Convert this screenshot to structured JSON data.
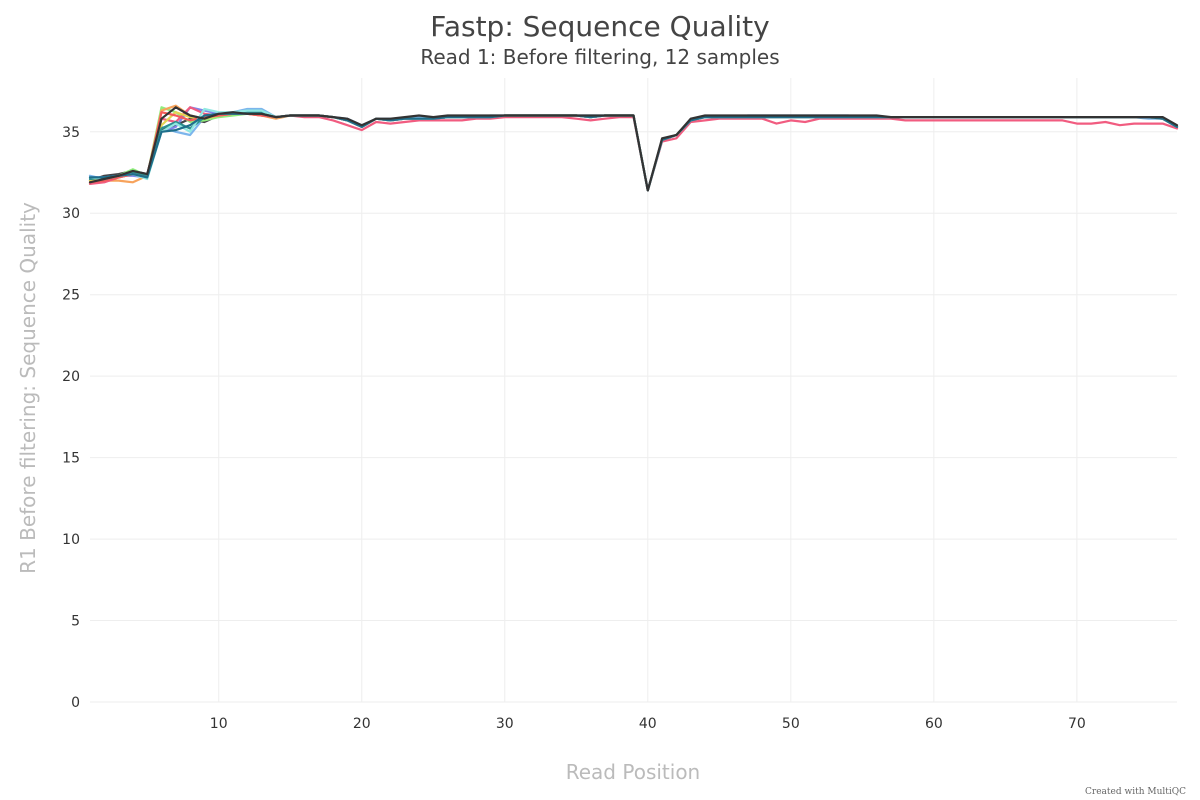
{
  "chart_data": {
    "type": "line",
    "title": "Fastp: Sequence Quality",
    "subtitle": "Read 1: Before filtering, 12 samples",
    "xlabel": "Read Position",
    "ylabel": "R1 Before filtering: Sequence Quality",
    "xlim": [
      1,
      77
    ],
    "ylim": [
      0,
      38.3
    ],
    "xticks": [
      10,
      20,
      30,
      40,
      50,
      60,
      70
    ],
    "yticks": [
      0,
      5,
      10,
      15,
      20,
      25,
      30,
      35
    ],
    "grid": true,
    "credit": "Created with MultiQC",
    "x": [
      1,
      2,
      3,
      4,
      5,
      6,
      7,
      8,
      9,
      10,
      11,
      12,
      13,
      14,
      15,
      16,
      17,
      18,
      19,
      20,
      21,
      22,
      23,
      24,
      25,
      26,
      27,
      28,
      29,
      30,
      31,
      32,
      33,
      34,
      35,
      36,
      37,
      38,
      39,
      40,
      41,
      42,
      43,
      44,
      45,
      46,
      47,
      48,
      49,
      50,
      51,
      52,
      53,
      54,
      55,
      56,
      57,
      58,
      59,
      60,
      61,
      62,
      63,
      64,
      65,
      66,
      67,
      68,
      69,
      70,
      71,
      72,
      73,
      74,
      75,
      76,
      77
    ],
    "series": [
      {
        "color": "#7cb5ec",
        "values": [
          32.3,
          32.1,
          32.2,
          32.4,
          32.2,
          35.3,
          35.0,
          34.8,
          35.9,
          36.1,
          36.2,
          36.4,
          36.4,
          35.9,
          36.0,
          36.0,
          36.0,
          35.9,
          35.8,
          35.4,
          35.8,
          35.8,
          35.8,
          35.9,
          35.9,
          35.9,
          35.9,
          35.9,
          36.0,
          36.0,
          36.0,
          36.0,
          36.0,
          36.0,
          36.0,
          36.0,
          36.0,
          36.0,
          36.0,
          31.4,
          34.5,
          34.8,
          35.7,
          35.9,
          35.9,
          35.9,
          36.0,
          36.0,
          36.0,
          36.0,
          36.0,
          36.0,
          36.0,
          36.0,
          35.9,
          35.9,
          35.9,
          35.9,
          35.9,
          35.9,
          35.9,
          35.9,
          35.9,
          35.9,
          35.9,
          35.9,
          35.9,
          35.9,
          35.9,
          35.9,
          35.9,
          35.9,
          35.9,
          35.9,
          35.8,
          35.8,
          35.3
        ]
      },
      {
        "color": "#434348",
        "values": [
          32.0,
          32.3,
          32.4,
          32.6,
          32.4,
          35.1,
          35.4,
          35.8,
          35.6,
          36.0,
          36.1,
          36.1,
          36.1,
          35.9,
          36.0,
          36.0,
          36.0,
          35.9,
          35.7,
          35.3,
          35.8,
          35.7,
          35.8,
          35.8,
          35.8,
          35.9,
          35.9,
          35.9,
          35.9,
          36.0,
          36.0,
          36.0,
          36.0,
          36.0,
          36.0,
          35.9,
          36.0,
          36.0,
          36.0,
          31.4,
          34.5,
          34.8,
          35.7,
          35.9,
          35.9,
          35.9,
          35.9,
          35.9,
          35.9,
          35.9,
          35.9,
          35.9,
          35.9,
          35.9,
          35.9,
          35.9,
          35.9,
          35.9,
          35.9,
          35.9,
          35.9,
          35.9,
          35.9,
          35.9,
          35.9,
          35.9,
          35.9,
          35.9,
          35.9,
          35.9,
          35.9,
          35.9,
          35.9,
          35.9,
          35.9,
          35.8,
          35.3
        ]
      },
      {
        "color": "#90ed7d",
        "values": [
          31.8,
          32.1,
          32.3,
          32.7,
          32.3,
          36.5,
          36.2,
          35.6,
          35.7,
          35.9,
          36.0,
          36.1,
          36.1,
          35.9,
          36.0,
          36.0,
          36.0,
          35.9,
          35.7,
          35.3,
          35.8,
          35.7,
          35.8,
          35.8,
          35.8,
          35.9,
          35.9,
          35.9,
          35.9,
          36.0,
          36.0,
          36.0,
          36.0,
          36.0,
          36.0,
          35.9,
          36.0,
          36.0,
          36.0,
          31.4,
          34.5,
          34.8,
          35.7,
          35.9,
          35.9,
          35.9,
          35.9,
          35.9,
          35.9,
          35.9,
          35.9,
          35.9,
          35.9,
          35.9,
          35.9,
          35.9,
          35.9,
          35.9,
          35.9,
          35.9,
          35.9,
          35.9,
          35.9,
          35.9,
          35.9,
          35.9,
          35.9,
          35.9,
          35.9,
          35.9,
          35.9,
          35.9,
          35.9,
          35.9,
          35.9,
          35.8,
          35.3
        ]
      },
      {
        "color": "#f7a35c",
        "values": [
          31.9,
          32.0,
          32.0,
          31.9,
          32.3,
          36.3,
          36.6,
          36.0,
          35.8,
          36.0,
          36.1,
          36.1,
          36.0,
          35.8,
          36.0,
          36.0,
          36.0,
          35.9,
          35.7,
          35.3,
          35.8,
          35.7,
          35.8,
          35.8,
          35.8,
          35.9,
          35.9,
          35.9,
          35.9,
          36.0,
          36.0,
          36.0,
          36.0,
          36.0,
          36.0,
          35.9,
          36.0,
          36.0,
          36.0,
          31.4,
          34.5,
          34.8,
          35.7,
          35.9,
          35.9,
          35.9,
          35.9,
          35.9,
          35.9,
          35.9,
          35.9,
          35.9,
          35.9,
          35.9,
          35.9,
          35.9,
          35.9,
          35.9,
          35.9,
          35.9,
          35.9,
          35.9,
          35.9,
          35.9,
          35.9,
          35.9,
          35.9,
          35.9,
          35.9,
          35.9,
          35.9,
          35.9,
          35.9,
          35.9,
          35.9,
          35.8,
          35.3
        ]
      },
      {
        "color": "#8085e9",
        "values": [
          32.2,
          32.2,
          32.3,
          32.3,
          32.2,
          35.0,
          35.3,
          36.5,
          36.3,
          36.1,
          36.1,
          36.1,
          36.1,
          35.9,
          36.0,
          36.0,
          36.0,
          35.9,
          35.7,
          35.3,
          35.8,
          35.7,
          35.8,
          35.8,
          35.8,
          35.9,
          35.9,
          35.9,
          35.9,
          36.0,
          36.0,
          36.0,
          36.0,
          36.0,
          36.0,
          35.9,
          36.0,
          36.0,
          36.0,
          31.4,
          34.5,
          34.8,
          35.7,
          35.9,
          35.9,
          35.9,
          35.9,
          35.9,
          35.9,
          35.9,
          35.9,
          35.9,
          35.9,
          35.9,
          35.9,
          35.9,
          35.9,
          35.9,
          35.9,
          35.9,
          35.9,
          35.9,
          35.9,
          35.9,
          35.9,
          35.9,
          35.9,
          35.9,
          35.9,
          35.9,
          35.9,
          35.9,
          35.9,
          35.9,
          35.9,
          35.8,
          35.3
        ]
      },
      {
        "color": "#f15c80",
        "values": [
          31.8,
          31.9,
          32.2,
          32.4,
          32.4,
          35.8,
          35.6,
          36.5,
          36.1,
          36.0,
          36.1,
          36.1,
          36.0,
          35.9,
          36.0,
          35.9,
          35.9,
          35.7,
          35.4,
          35.1,
          35.6,
          35.5,
          35.6,
          35.7,
          35.7,
          35.7,
          35.7,
          35.8,
          35.8,
          35.9,
          35.9,
          35.9,
          35.9,
          35.9,
          35.8,
          35.7,
          35.8,
          35.9,
          35.9,
          31.4,
          34.4,
          34.6,
          35.6,
          35.7,
          35.8,
          35.8,
          35.8,
          35.8,
          35.5,
          35.7,
          35.6,
          35.8,
          35.8,
          35.8,
          35.8,
          35.8,
          35.8,
          35.7,
          35.7,
          35.7,
          35.7,
          35.7,
          35.7,
          35.7,
          35.7,
          35.7,
          35.7,
          35.7,
          35.7,
          35.5,
          35.5,
          35.6,
          35.4,
          35.5,
          35.5,
          35.5,
          35.2
        ]
      },
      {
        "color": "#e4d354",
        "values": [
          32.0,
          32.1,
          32.2,
          32.4,
          32.3,
          35.4,
          36.2,
          35.9,
          35.8,
          36.0,
          36.1,
          36.1,
          36.0,
          35.9,
          36.0,
          36.0,
          36.0,
          35.9,
          35.7,
          35.3,
          35.8,
          35.7,
          35.8,
          35.8,
          35.8,
          35.9,
          35.9,
          35.9,
          35.9,
          36.0,
          36.0,
          36.0,
          36.0,
          36.0,
          36.0,
          35.9,
          36.0,
          36.0,
          36.0,
          31.4,
          34.5,
          34.8,
          35.7,
          35.9,
          35.9,
          35.9,
          35.9,
          35.9,
          35.9,
          35.9,
          35.9,
          35.9,
          35.9,
          35.9,
          35.9,
          35.9,
          35.9,
          35.9,
          35.9,
          35.9,
          35.9,
          35.9,
          35.9,
          35.9,
          35.9,
          35.9,
          35.9,
          35.9,
          35.9,
          35.9,
          35.9,
          35.9,
          35.9,
          35.9,
          35.9,
          35.8,
          35.3
        ]
      },
      {
        "color": "#2b908f",
        "values": [
          32.1,
          32.2,
          32.3,
          32.5,
          32.3,
          35.2,
          35.6,
          35.2,
          35.9,
          36.1,
          36.1,
          36.2,
          36.2,
          35.9,
          36.0,
          36.0,
          36.0,
          35.9,
          35.7,
          35.3,
          35.8,
          35.7,
          35.8,
          35.8,
          35.8,
          35.9,
          35.9,
          35.9,
          35.9,
          36.0,
          36.0,
          36.0,
          36.0,
          36.0,
          36.0,
          35.9,
          36.0,
          36.0,
          36.0,
          31.4,
          34.5,
          34.8,
          35.7,
          35.9,
          35.9,
          35.9,
          35.9,
          35.9,
          35.9,
          35.9,
          35.9,
          35.9,
          35.9,
          35.9,
          35.9,
          35.9,
          35.9,
          35.9,
          35.9,
          35.9,
          35.9,
          35.9,
          35.9,
          35.9,
          35.9,
          35.9,
          35.9,
          35.9,
          35.9,
          35.9,
          35.9,
          35.9,
          35.9,
          35.9,
          35.9,
          35.8,
          35.3
        ]
      },
      {
        "color": "#f45b5b",
        "values": [
          31.9,
          32.0,
          32.2,
          32.4,
          32.2,
          36.2,
          36.0,
          35.7,
          35.9,
          36.0,
          36.1,
          36.1,
          36.0,
          35.9,
          36.0,
          36.0,
          36.0,
          35.9,
          35.7,
          35.3,
          35.8,
          35.7,
          35.8,
          35.8,
          35.8,
          35.9,
          35.9,
          35.9,
          35.9,
          36.0,
          36.0,
          36.0,
          36.0,
          36.0,
          36.0,
          35.9,
          36.0,
          36.0,
          36.0,
          31.4,
          34.5,
          34.8,
          35.7,
          35.9,
          35.9,
          35.9,
          35.9,
          35.9,
          35.9,
          35.9,
          35.9,
          35.9,
          35.9,
          35.9,
          35.9,
          35.9,
          35.9,
          35.9,
          35.9,
          35.9,
          35.9,
          35.9,
          35.9,
          35.9,
          35.9,
          35.9,
          35.9,
          35.9,
          35.9,
          35.9,
          35.9,
          35.9,
          35.9,
          35.9,
          35.9,
          35.8,
          35.3
        ]
      },
      {
        "color": "#91e8e1",
        "values": [
          32.2,
          32.1,
          32.3,
          32.4,
          32.1,
          35.0,
          35.5,
          35.0,
          36.4,
          36.2,
          36.2,
          36.3,
          36.3,
          35.9,
          36.0,
          36.0,
          36.0,
          35.9,
          35.7,
          35.3,
          35.8,
          35.7,
          35.8,
          35.8,
          35.8,
          35.9,
          35.9,
          35.9,
          35.9,
          36.0,
          36.0,
          36.0,
          36.0,
          36.0,
          36.0,
          35.9,
          36.0,
          36.0,
          36.0,
          31.4,
          34.5,
          34.8,
          35.7,
          35.9,
          35.9,
          35.9,
          35.9,
          35.9,
          35.9,
          35.9,
          35.9,
          35.9,
          35.9,
          35.9,
          35.9,
          35.9,
          35.9,
          35.9,
          35.9,
          35.9,
          35.9,
          35.9,
          35.9,
          35.9,
          35.9,
          35.9,
          35.9,
          35.9,
          35.9,
          35.9,
          35.9,
          35.9,
          35.9,
          35.9,
          35.9,
          35.8,
          35.3
        ]
      },
      {
        "color": "#1f6f8b",
        "values": [
          32.2,
          32.2,
          32.3,
          32.4,
          32.2,
          35.0,
          35.1,
          35.4,
          36.0,
          36.1,
          36.1,
          36.1,
          36.1,
          35.9,
          36.0,
          36.0,
          36.0,
          35.9,
          35.7,
          35.3,
          35.8,
          35.7,
          35.8,
          35.8,
          35.8,
          35.9,
          35.9,
          35.9,
          35.9,
          36.0,
          36.0,
          36.0,
          36.0,
          36.0,
          36.0,
          35.9,
          36.0,
          36.0,
          36.0,
          31.4,
          34.5,
          34.8,
          35.7,
          35.9,
          35.9,
          35.9,
          35.9,
          35.9,
          35.9,
          35.9,
          35.9,
          35.9,
          35.9,
          35.9,
          35.9,
          35.9,
          35.9,
          35.9,
          35.9,
          35.9,
          35.9,
          35.9,
          35.9,
          35.9,
          35.9,
          35.9,
          35.9,
          35.9,
          35.9,
          35.9,
          35.9,
          35.9,
          35.9,
          35.9,
          35.9,
          35.8,
          35.3
        ]
      },
      {
        "color": "#333333",
        "values": [
          31.9,
          32.1,
          32.3,
          32.6,
          32.4,
          35.8,
          36.5,
          36.0,
          35.8,
          36.1,
          36.2,
          36.1,
          36.1,
          35.9,
          36.0,
          36.0,
          36.0,
          35.9,
          35.8,
          35.4,
          35.8,
          35.8,
          35.9,
          36.0,
          35.9,
          36.0,
          36.0,
          36.0,
          36.0,
          36.0,
          36.0,
          36.0,
          36.0,
          36.0,
          36.0,
          36.0,
          36.0,
          36.0,
          36.0,
          31.4,
          34.6,
          34.8,
          35.8,
          36.0,
          36.0,
          36.0,
          36.0,
          36.0,
          36.0,
          36.0,
          36.0,
          36.0,
          36.0,
          36.0,
          36.0,
          36.0,
          35.9,
          35.9,
          35.9,
          35.9,
          35.9,
          35.9,
          35.9,
          35.9,
          35.9,
          35.9,
          35.9,
          35.9,
          35.9,
          35.9,
          35.9,
          35.9,
          35.9,
          35.9,
          35.9,
          35.9,
          35.4
        ]
      }
    ]
  }
}
